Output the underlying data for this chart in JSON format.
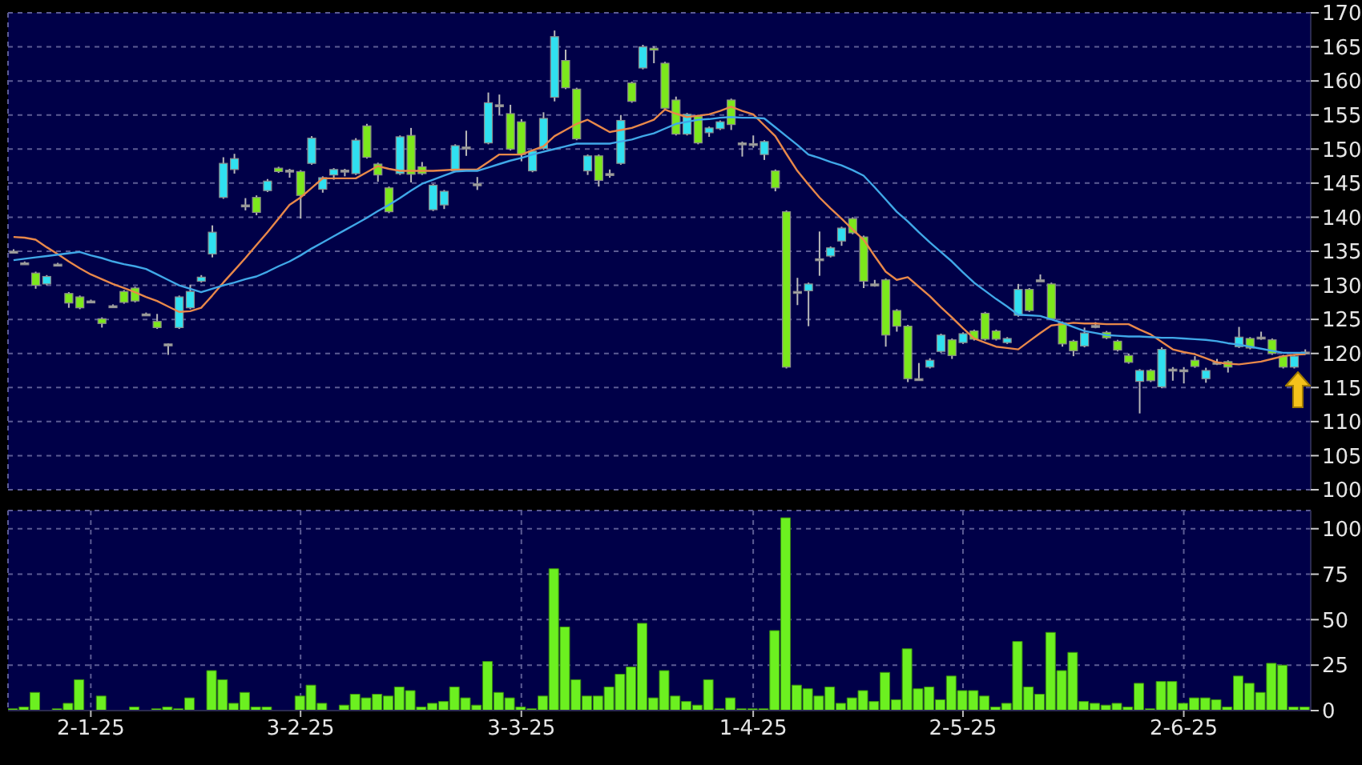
{
  "chart_data": [
    {
      "type": "candlestick",
      "tick_labels": "y",
      "grid": true,
      "ylim": [
        100,
        170
      ],
      "yticks": [
        100,
        105,
        110,
        115,
        120,
        125,
        130,
        135,
        140,
        145,
        150,
        155,
        160,
        165,
        170
      ],
      "categories": [
        null,
        null,
        null,
        null,
        null,
        null,
        null,
        null,
        null,
        null,
        null,
        null,
        null,
        null,
        null,
        null,
        null,
        null,
        null,
        null,
        null,
        null,
        null,
        null,
        null,
        null,
        null,
        null,
        null,
        null,
        null,
        null,
        null,
        null,
        null,
        null,
        null,
        null,
        null,
        null,
        null,
        null,
        null,
        null,
        null,
        null,
        null,
        null,
        null,
        null,
        null,
        null,
        null,
        null,
        null,
        null,
        null,
        null,
        null,
        null,
        null,
        null,
        null,
        null,
        null,
        null,
        null,
        null,
        null,
        null,
        null,
        null,
        null,
        null,
        null,
        null,
        null,
        null,
        null,
        null,
        null,
        null,
        null,
        null,
        null,
        null,
        null,
        null,
        null,
        null,
        null,
        null,
        null,
        null,
        null,
        null,
        null,
        null,
        null,
        null,
        null,
        null,
        null,
        null,
        null,
        null,
        null,
        null,
        null,
        null,
        null,
        null,
        null,
        null,
        null,
        null,
        null,
        null
      ],
      "ohlc": [
        [
          135,
          135.3,
          134.8,
          135
        ],
        [
          133.3,
          133.5,
          133.1,
          133.3
        ],
        [
          131.8,
          132.0,
          129.5,
          130.0
        ],
        [
          130.2,
          131.5,
          130.0,
          131.3
        ],
        [
          133.1,
          133.3,
          132.9,
          133.1
        ],
        [
          128.8,
          129.0,
          126.7,
          127.4
        ],
        [
          128.3,
          128.5,
          126.5,
          126.7
        ],
        [
          127.7,
          127.9,
          127.5,
          127.7
        ],
        [
          125.1,
          125.3,
          123.8,
          124.4
        ],
        [
          127,
          127.2,
          126.8,
          127
        ],
        [
          129.1,
          129.3,
          127.3,
          127.5
        ],
        [
          129.6,
          129.8,
          127.5,
          127.7
        ],
        [
          125.8,
          126.0,
          125.6,
          125.8
        ],
        [
          124.7,
          125.8,
          123.6,
          123.8
        ],
        [
          121.4,
          121.5,
          119.8,
          121.4
        ],
        [
          123.8,
          128.5,
          123.6,
          128.3
        ],
        [
          126.7,
          130.1,
          126.5,
          129.1
        ],
        [
          130.6,
          131.5,
          130.4,
          131.2
        ],
        [
          134.6,
          138.8,
          134.1,
          137.8
        ],
        [
          142.9,
          148.8,
          142.7,
          147.9
        ],
        [
          147.0,
          149.3,
          146.4,
          148.6
        ],
        [
          141.8,
          142.8,
          141.0,
          141.8
        ],
        [
          142.9,
          143.2,
          140.3,
          140.7
        ],
        [
          143.9,
          145.6,
          143.7,
          145.3
        ],
        [
          147.2,
          147.4,
          146.5,
          146.7
        ],
        [
          146.9,
          147.1,
          145.8,
          146.9
        ],
        [
          146.7,
          146.9,
          139.8,
          143.2
        ],
        [
          147.9,
          151.9,
          147.7,
          151.6
        ],
        [
          144.1,
          146.0,
          143.6,
          145.8
        ],
        [
          146.2,
          147.2,
          145.5,
          147.0
        ],
        [
          146.9,
          147.1,
          146.0,
          146.9
        ],
        [
          146.4,
          151.6,
          146.2,
          151.3
        ],
        [
          153.4,
          153.7,
          148.6,
          148.8
        ],
        [
          147.8,
          148.0,
          145.2,
          146.2
        ],
        [
          144.3,
          144.5,
          140.6,
          140.8
        ],
        [
          146.4,
          152.0,
          146.2,
          151.8
        ],
        [
          152.0,
          153.1,
          145.1,
          146.3
        ],
        [
          147.4,
          148.1,
          146.2,
          146.4
        ],
        [
          141.1,
          144.9,
          140.9,
          144.7
        ],
        [
          141.8,
          144.0,
          141.2,
          143.8
        ],
        [
          146.8,
          150.7,
          146.6,
          150.5
        ],
        [
          150.3,
          152.7,
          149.0,
          150.3
        ],
        [
          144.9,
          145.9,
          144.0,
          144.9
        ],
        [
          150.9,
          158.3,
          150.7,
          156.8
        ],
        [
          156.5,
          158.0,
          155.0,
          156.5
        ],
        [
          155.2,
          156.5,
          149.8,
          150.0
        ],
        [
          154.0,
          154.4,
          148.2,
          149.2
        ],
        [
          146.8,
          149.9,
          146.6,
          149.7
        ],
        [
          150.1,
          155.4,
          149.9,
          154.5
        ],
        [
          157.6,
          167.4,
          157.0,
          166.5
        ],
        [
          163.0,
          164.6,
          158.8,
          159.0
        ],
        [
          158.8,
          159.0,
          151.3,
          151.5
        ],
        [
          146.8,
          149.2,
          146.2,
          149.0
        ],
        [
          149.0,
          149.2,
          144.5,
          145.4
        ],
        [
          146.4,
          147.0,
          145.8,
          146.4
        ],
        [
          147.9,
          155.0,
          147.7,
          154.2
        ],
        [
          159.7,
          159.9,
          156.8,
          157.0
        ],
        [
          161.9,
          165.3,
          161.7,
          165.0
        ],
        [
          164.8,
          165.1,
          162.6,
          164.6
        ],
        [
          162.6,
          162.8,
          155.8,
          156.0
        ],
        [
          157.2,
          157.7,
          152.0,
          152.2
        ],
        [
          152.2,
          155.3,
          152.0,
          155.1
        ],
        [
          154.8,
          155.0,
          150.7,
          150.9
        ],
        [
          152.4,
          153.3,
          151.8,
          153.1
        ],
        [
          153.0,
          154.2,
          152.8,
          154.0
        ],
        [
          157.2,
          157.4,
          152.8,
          153.6
        ],
        [
          150.9,
          151.1,
          148.9,
          150.9
        ],
        [
          150.8,
          152.0,
          150.2,
          150.8
        ],
        [
          149.2,
          151.3,
          148.4,
          151.1
        ],
        [
          146.8,
          147.0,
          143.8,
          144.3
        ],
        [
          140.8,
          141.0,
          117.8,
          118.0
        ],
        [
          129.1,
          131.1,
          127.1,
          129.1
        ],
        [
          129.2,
          130.4,
          124.0,
          130.2
        ],
        [
          133.9,
          137.9,
          131.4,
          133.9
        ],
        [
          134.3,
          135.7,
          134.1,
          135.5
        ],
        [
          136.5,
          138.6,
          135.8,
          138.4
        ],
        [
          139.8,
          140.0,
          137.5,
          137.7
        ],
        [
          137.1,
          137.3,
          129.6,
          130.6
        ],
        [
          130.2,
          130.8,
          129.8,
          130.2
        ],
        [
          130.8,
          131.0,
          121.0,
          122.7
        ],
        [
          126.3,
          126.5,
          123.2,
          124.0
        ],
        [
          124.0,
          124.2,
          115.8,
          116.3
        ],
        [
          116.3,
          118.6,
          116.1,
          116.3
        ],
        [
          118.0,
          119.3,
          117.8,
          119.0
        ],
        [
          120.3,
          122.9,
          120.1,
          122.7
        ],
        [
          122.0,
          122.2,
          119.2,
          119.7
        ],
        [
          121.6,
          123.1,
          121.4,
          122.9
        ],
        [
          123.3,
          123.5,
          121.9,
          122.1
        ],
        [
          125.9,
          126.1,
          121.9,
          122.1
        ],
        [
          123.3,
          123.5,
          121.9,
          122.1
        ],
        [
          121.6,
          122.4,
          121.4,
          122.2
        ],
        [
          125.6,
          130.2,
          125.4,
          129.4
        ],
        [
          129.4,
          129.6,
          126.1,
          126.3
        ],
        [
          130.8,
          131.6,
          130.6,
          130.8
        ],
        [
          130.2,
          130.4,
          124.9,
          125.1
        ],
        [
          124.5,
          124.7,
          121.0,
          121.4
        ],
        [
          121.8,
          122.0,
          119.6,
          120.4
        ],
        [
          121.1,
          123.8,
          120.9,
          123.0
        ],
        [
          124.1,
          124.6,
          123.7,
          124.1
        ],
        [
          123.1,
          123.3,
          122.1,
          122.3
        ],
        [
          121.8,
          122.0,
          120.3,
          120.5
        ],
        [
          119.7,
          120.0,
          118.5,
          118.7
        ],
        [
          115.9,
          117.7,
          111.2,
          117.5
        ],
        [
          117.5,
          117.7,
          115.8,
          116.0
        ],
        [
          115.1,
          120.9,
          114.9,
          120.6
        ],
        [
          117.7,
          118.0,
          116.0,
          117.7
        ],
        [
          117.6,
          118.0,
          115.6,
          117.6
        ],
        [
          119.0,
          119.6,
          117.9,
          118.1
        ],
        [
          116.3,
          117.9,
          115.7,
          117.5
        ],
        [
          118.7,
          119.2,
          118.3,
          118.7
        ],
        [
          118.8,
          119.0,
          117.2,
          118.0
        ],
        [
          121.0,
          123.9,
          120.8,
          122.4
        ],
        [
          122.2,
          122.4,
          120.6,
          120.8
        ],
        [
          122.4,
          123.2,
          122.0,
          122.4
        ],
        [
          122.0,
          122.2,
          119.8,
          120.0
        ],
        [
          119.6,
          119.8,
          117.8,
          118.0
        ],
        [
          118.0,
          119.8,
          117.8,
          119.6
        ],
        [
          120.2,
          120.6,
          119.8,
          120.2
        ]
      ],
      "colors": [
        "#a8a8a8",
        "#a8a8a8",
        "#7ce81c",
        "#30e0f0",
        "#a8a8a8",
        "#7ce81c",
        "#7ce81c",
        "#a8a8a8",
        "#7ce81c",
        "#a8a8a8",
        "#7ce81c",
        "#7ce81c",
        "#a8a8a8",
        "#7ce81c",
        "#a8a8a8",
        "#30e0f0",
        "#30e0f0",
        "#30e0f0",
        "#30e0f0",
        "#30e0f0",
        "#30e0f0",
        "#a8a8a8",
        "#7ce81c",
        "#30e0f0",
        "#7ce81c",
        "#a8a8a8",
        "#7ce81c",
        "#30e0f0",
        "#30e0f0",
        "#30e0f0",
        "#a8a8a8",
        "#30e0f0",
        "#7ce81c",
        "#7ce81c",
        "#7ce81c",
        "#30e0f0",
        "#7ce81c",
        "#7ce81c",
        "#30e0f0",
        "#30e0f0",
        "#30e0f0",
        "#a8a8a8",
        "#a8a8a8",
        "#30e0f0",
        "#a8a8a8",
        "#7ce81c",
        "#7ce81c",
        "#30e0f0",
        "#30e0f0",
        "#30e0f0",
        "#7ce81c",
        "#7ce81c",
        "#30e0f0",
        "#7ce81c",
        "#a8a8a8",
        "#30e0f0",
        "#7ce81c",
        "#30e0f0",
        "#7ce81c",
        "#7ce81c",
        "#7ce81c",
        "#30e0f0",
        "#7ce81c",
        "#30e0f0",
        "#30e0f0",
        "#7ce81c",
        "#a8a8a8",
        "#a8a8a8",
        "#30e0f0",
        "#7ce81c",
        "#7ce81c",
        "#a8a8a8",
        "#30e0f0",
        "#a8a8a8",
        "#30e0f0",
        "#30e0f0",
        "#7ce81c",
        "#7ce81c",
        "#a8a8a8",
        "#7ce81c",
        "#7ce81c",
        "#7ce81c",
        "#a8a8a8",
        "#30e0f0",
        "#30e0f0",
        "#7ce81c",
        "#30e0f0",
        "#7ce81c",
        "#7ce81c",
        "#7ce81c",
        "#30e0f0",
        "#30e0f0",
        "#7ce81c",
        "#a8a8a8",
        "#7ce81c",
        "#7ce81c",
        "#7ce81c",
        "#30e0f0",
        "#a8a8a8",
        "#7ce81c",
        "#7ce81c",
        "#7ce81c",
        "#30e0f0",
        "#7ce81c",
        "#30e0f0",
        "#a8a8a8",
        "#a8a8a8",
        "#7ce81c",
        "#30e0f0",
        "#a8a8a8",
        "#7ce81c",
        "#30e0f0",
        "#7ce81c",
        "#a8a8a8",
        "#7ce81c",
        "#7ce81c",
        "#30e0f0",
        "#a8a8a8"
      ],
      "series": [
        {
          "type": "line",
          "color": "#e8884a",
          "values": [
            137.1,
            137.0,
            136.7,
            135.6,
            134.6,
            133.5,
            132.5,
            131.6,
            130.9,
            130.2,
            129.6,
            129.0,
            128.3,
            127.7,
            126.9,
            126.1,
            126.2,
            126.7,
            128.5,
            130.4,
            132.2,
            134.0,
            135.9,
            137.8,
            139.8,
            141.8,
            142.9,
            144.3,
            145.7,
            145.7,
            145.7,
            145.7,
            146.6,
            147.5,
            147.1,
            146.8,
            146.8,
            146.8,
            146.8,
            146.9,
            147.0,
            147.0,
            147.0,
            148.1,
            149.2,
            149.2,
            149.2,
            149.8,
            150.4,
            151.9,
            152.8,
            153.7,
            154.3,
            153.4,
            152.5,
            152.8,
            153.1,
            153.7,
            154.3,
            155.8,
            155.2,
            154.7,
            154.9,
            155.1,
            155.6,
            156.2,
            155.6,
            155.1,
            153.5,
            151.9,
            149.3,
            146.8,
            144.8,
            142.9,
            141.3,
            139.8,
            138.2,
            136.7,
            134.3,
            132.0,
            130.8,
            131.2,
            129.8,
            128.4,
            126.8,
            125.3,
            123.7,
            122.2,
            121.6,
            121.0,
            120.8,
            120.6,
            121.8,
            123.0,
            124.1,
            124.3,
            124.5,
            124.4,
            124.4,
            124.3,
            124.3,
            124.3,
            123.5,
            122.8,
            121.7,
            120.6,
            120.2,
            119.9,
            119.3,
            118.7,
            118.5,
            118.4,
            118.6,
            118.8,
            119.2,
            119.6,
            119.8,
            119.9
          ]
        },
        {
          "type": "line",
          "color": "#40a8e8",
          "values": [
            133.7,
            133.9,
            134.1,
            134.3,
            134.5,
            134.7,
            134.9,
            134.4,
            134.0,
            133.5,
            133.1,
            132.8,
            132.4,
            131.6,
            130.8,
            130.0,
            129.5,
            129.0,
            129.5,
            130.0,
            130.4,
            130.9,
            131.3,
            132.0,
            132.8,
            133.5,
            134.4,
            135.4,
            136.3,
            137.2,
            138.1,
            139.0,
            139.9,
            140.9,
            141.8,
            142.8,
            143.9,
            144.9,
            145.5,
            146.1,
            146.7,
            146.8,
            146.8,
            147.3,
            147.8,
            148.3,
            148.7,
            149.2,
            149.6,
            150.0,
            150.4,
            150.8,
            150.8,
            150.8,
            150.8,
            151.1,
            151.4,
            151.9,
            152.3,
            153.0,
            153.7,
            154.0,
            154.3,
            154.4,
            154.6,
            154.7,
            154.6,
            154.6,
            154.5,
            153.2,
            151.9,
            150.6,
            149.2,
            148.7,
            148.1,
            147.6,
            146.9,
            146.1,
            144.4,
            142.6,
            140.8,
            139.4,
            137.8,
            136.3,
            134.9,
            133.5,
            131.9,
            130.4,
            129.2,
            128.0,
            126.9,
            125.7,
            125.6,
            125.5,
            125.0,
            124.5,
            123.9,
            123.3,
            123.0,
            122.7,
            122.6,
            122.5,
            122.5,
            122.4,
            122.3,
            122.3,
            122.2,
            122.1,
            122.0,
            121.8,
            121.5,
            121.3,
            121.0,
            120.7,
            120.4,
            120.1,
            120.1,
            120.1
          ]
        }
      ]
    },
    {
      "type": "bar",
      "grid": true,
      "color": "#6cf020",
      "ylim": [
        0,
        110
      ],
      "yticks": [
        0,
        25,
        50,
        75,
        100
      ],
      "categories": [
        null,
        null,
        null,
        null,
        null,
        null,
        null,
        "2-1-25",
        null,
        null,
        null,
        null,
        null,
        null,
        null,
        null,
        null,
        null,
        null,
        null,
        null,
        null,
        null,
        null,
        null,
        null,
        "3-2-25",
        null,
        null,
        null,
        null,
        null,
        null,
        null,
        null,
        null,
        null,
        null,
        null,
        null,
        null,
        null,
        null,
        null,
        null,
        null,
        "3-3-25",
        null,
        null,
        null,
        null,
        null,
        null,
        null,
        null,
        null,
        null,
        null,
        null,
        null,
        null,
        null,
        null,
        null,
        null,
        null,
        null,
        "1-4-25",
        null,
        null,
        null,
        null,
        null,
        null,
        null,
        null,
        null,
        null,
        null,
        null,
        null,
        null,
        null,
        null,
        null,
        null,
        "2-5-25",
        null,
        null,
        null,
        null,
        null,
        null,
        null,
        null,
        null,
        null,
        null,
        null,
        null,
        null,
        null,
        null,
        null,
        null,
        null,
        "2-6-25",
        null,
        null,
        null,
        null,
        null,
        null,
        null,
        null,
        null,
        null,
        null
      ],
      "values": [
        1,
        2,
        10,
        0,
        1,
        4,
        17,
        0,
        8,
        0,
        0,
        2,
        0,
        1,
        2,
        1,
        7,
        0,
        22,
        17,
        4,
        10,
        2,
        2,
        0,
        0,
        8,
        14,
        4,
        0,
        3,
        9,
        7,
        9,
        8,
        13,
        11,
        2,
        4,
        5,
        13,
        7,
        3,
        27,
        10,
        7,
        2,
        1,
        8,
        78,
        46,
        17,
        8,
        8,
        13,
        20,
        24,
        48,
        7,
        22,
        8,
        5,
        3,
        17,
        1,
        7,
        1,
        1,
        1,
        44,
        106,
        14,
        12,
        8,
        13,
        4,
        7,
        11,
        5,
        21,
        6,
        34,
        12,
        13,
        6,
        19,
        11,
        11,
        8,
        2,
        4,
        38,
        13,
        9,
        43,
        22,
        32,
        5,
        4,
        3,
        4,
        2,
        15,
        1,
        16,
        16,
        4,
        7,
        7,
        6,
        2,
        19,
        15,
        10,
        26,
        25,
        2,
        2
      ]
    }
  ]
}
